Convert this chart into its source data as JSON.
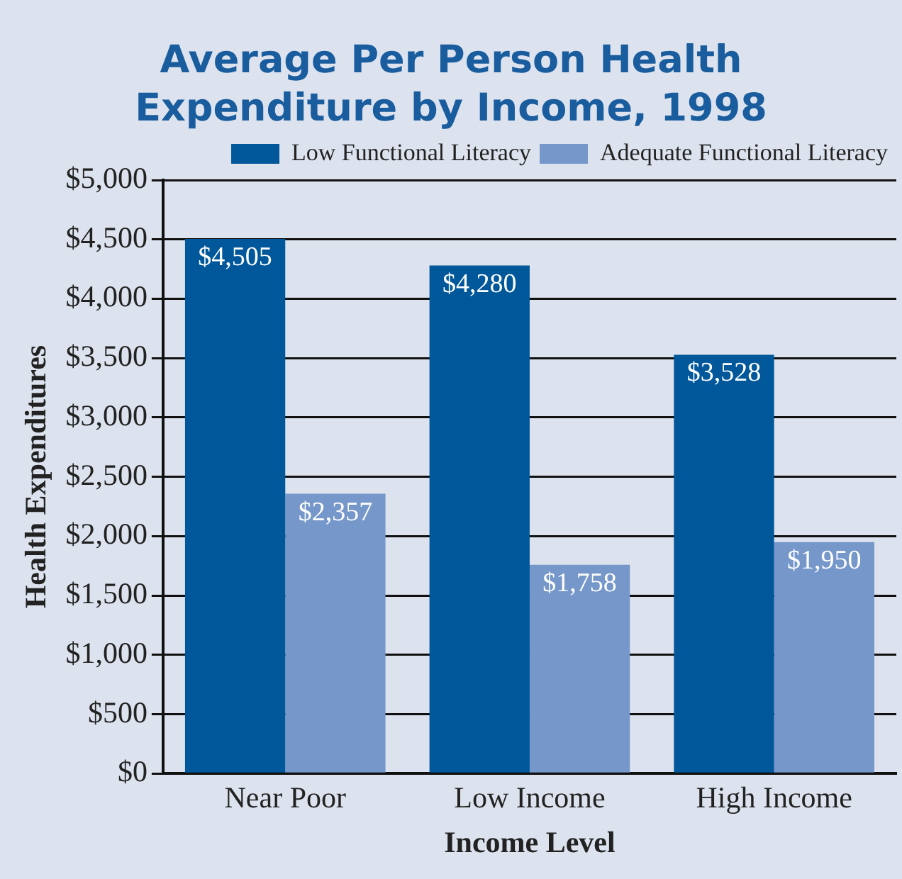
{
  "chart_data": {
    "type": "bar",
    "title": "Average Per Person Health Expenditure by Income, 1998",
    "xlabel": "Income Level",
    "ylabel": "Health Expenditures",
    "categories": [
      "Near Poor",
      "Low Income",
      "High Income"
    ],
    "series": [
      {
        "name": "Low Functional Literacy",
        "color": "#00579a",
        "values": [
          4505,
          4280,
          3528
        ],
        "value_labels": [
          "$4,505",
          "$4,280",
          "$3,528"
        ]
      },
      {
        "name": "Adequate Functional Literacy",
        "color": "#7597c9",
        "values": [
          2357,
          1758,
          1950
        ],
        "value_labels": [
          "$2,357",
          "$1,758",
          "$1,950"
        ]
      }
    ],
    "ylim": [
      0,
      5000
    ],
    "yticks": [
      {
        "value": 0,
        "label": "$0"
      },
      {
        "value": 500,
        "label": "$500"
      },
      {
        "value": 1000,
        "label": "$1,000"
      },
      {
        "value": 1500,
        "label": "$1,500"
      },
      {
        "value": 2000,
        "label": "$2,000"
      },
      {
        "value": 2500,
        "label": "$2,500"
      },
      {
        "value": 3000,
        "label": "$3,000"
      },
      {
        "value": 3500,
        "label": "$3,500"
      },
      {
        "value": 4000,
        "label": "$4,000"
      },
      {
        "value": 4500,
        "label": "$4,500"
      },
      {
        "value": 5000,
        "label": "$5,000"
      }
    ],
    "grid": "y",
    "legend": "top right"
  }
}
